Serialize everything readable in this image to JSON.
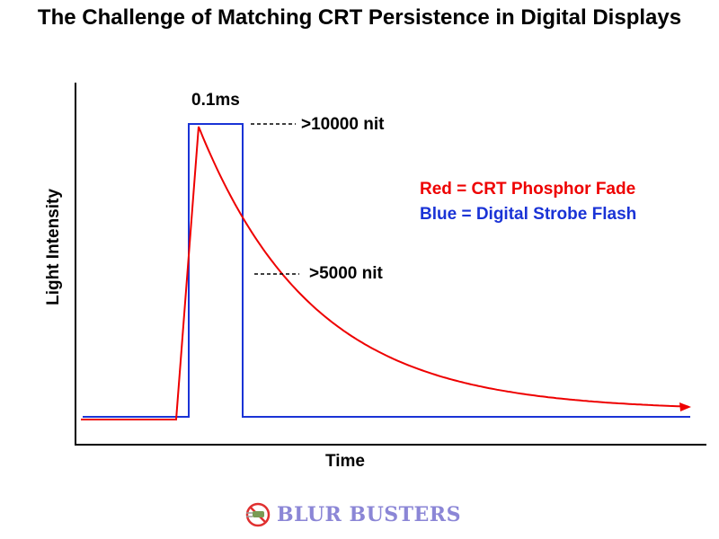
{
  "title": "The Challenge of Matching CRT Persistence in Digital Displays",
  "chart_data": {
    "type": "line",
    "xlabel": "Time",
    "ylabel": "Light Intensity",
    "series": [
      {
        "name": "Red = CRT Phosphor Fade",
        "color": "#ee0000"
      },
      {
        "name": "Blue = Digital Strobe Flash",
        "color": "#1a33d6"
      }
    ],
    "annotations": {
      "pulse_width": "0.1ms",
      "peak_level": ">10000 nit",
      "half_level": ">5000 nit"
    }
  },
  "logo": {
    "text": "BLUR BUSTERS",
    "color": "#8b86d6"
  }
}
